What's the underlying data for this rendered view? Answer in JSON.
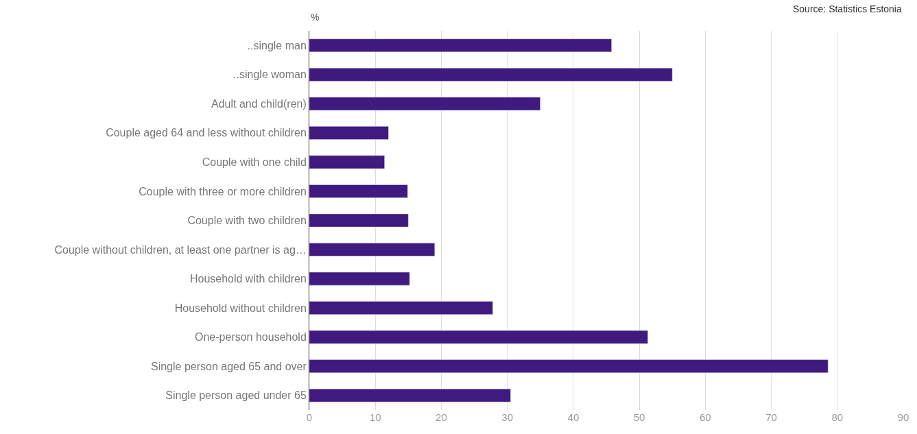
{
  "chart_data": {
    "type": "bar",
    "orientation": "horizontal",
    "categories": [
      "..single man",
      "..single woman",
      "Adult and child(ren)",
      "Couple aged 64 and less without children",
      "Couple with one child",
      "Couple with three or more children",
      "Couple with two children",
      "Couple without children, at least one partner is ag…",
      "Household with children",
      "Household without children",
      "One-person household",
      "Single person aged 65 and over",
      "Single person aged under 65"
    ],
    "values": [
      45.8,
      55.0,
      35.0,
      12.0,
      11.4,
      14.9,
      15.0,
      19.0,
      15.2,
      27.8,
      51.3,
      78.6,
      30.5
    ],
    "color": "#3f1a7f",
    "xlim": [
      0,
      90
    ],
    "xticks": [
      0,
      10,
      20,
      30,
      40,
      50,
      60,
      70,
      80,
      90
    ],
    "grid": "x",
    "annotations": [
      "%",
      "Source: Statistics Estonia"
    ]
  }
}
